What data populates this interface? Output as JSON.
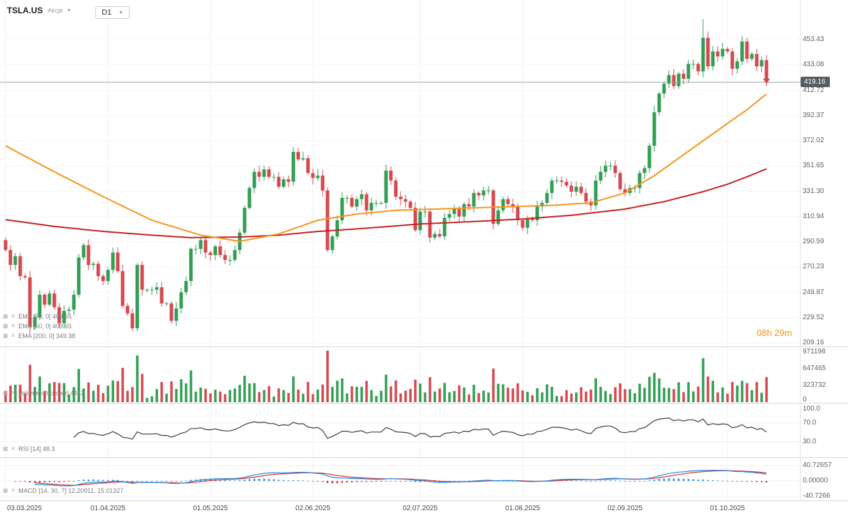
{
  "toolbar": {
    "symbol": "TSLA.US",
    "instrument_type": "Akcje",
    "timeframe": "D1"
  },
  "price_axis": {
    "labels": [
      "453.43",
      "433.08",
      "412.72",
      "392.37",
      "372.02",
      "351.65",
      "331.30",
      "310.94",
      "290.59",
      "270.23",
      "249.87",
      "229.52",
      "209.16"
    ],
    "current_price": "419.16"
  },
  "main_chart": {
    "ema_rows": [
      "EMA [50, 0] 409.65",
      "EMA [50, 0] 409.65",
      "EMA [200, 0] 349.38"
    ],
    "timer": "08h 29m"
  },
  "volume_panel": {
    "legend": "Volumen [tickowy] 4412",
    "axis": [
      "971198",
      "647465",
      "323732",
      "0"
    ]
  },
  "rsi_panel": {
    "legend": "RSI [14] 48.3",
    "axis": [
      "100.0",
      "70.0",
      "30.0"
    ]
  },
  "macd_panel": {
    "legend": "MACD [14, 30, 7] 12.20911, 15.01327",
    "axis": [
      "40.72657",
      "0.00000",
      "-40.7266"
    ]
  },
  "date_axis": [
    "03.03.2025",
    "01.04.2025",
    "01.05.2025",
    "02.06.2025",
    "02.07.2025",
    "01.08.2025",
    "02.09.2025",
    "01.10.2025"
  ],
  "chart_data": {
    "type": "candlestick",
    "symbol": "TSLA.US",
    "timeframe": "D1",
    "indicators": [
      "EMA(50)",
      "EMA(200)",
      "Volume",
      "RSI(14)",
      "MACD(14,30,7)"
    ],
    "price_range": [
      209.16,
      453.43
    ],
    "current_price": 419.16,
    "first_open": 292,
    "peak_high": 470,
    "closes": [
      284,
      272,
      279,
      263,
      262,
      222,
      230,
      248,
      240,
      249,
      238,
      225,
      235,
      236,
      248,
      278,
      288,
      272,
      273,
      263,
      259,
      268,
      282,
      267,
      239,
      233,
      221,
      272,
      252,
      252,
      252,
      254,
      241,
      241,
      227,
      237,
      250,
      259,
      285,
      285,
      292,
      282,
      280,
      287,
      280,
      276,
      276,
      284,
      298,
      318,
      334,
      347,
      343,
      349,
      343,
      343,
      335,
      341,
      339,
      363,
      357,
      358,
      346,
      342,
      344,
      332,
      284,
      295,
      308,
      326,
      326,
      319,
      325,
      329,
      316,
      322,
      322,
      322,
      348,
      340,
      327,
      325,
      323,
      318,
      300,
      315,
      315,
      294,
      297,
      295,
      310,
      313,
      317,
      311,
      321,
      319,
      330,
      328,
      332,
      332,
      305,
      316,
      325,
      321,
      319,
      308,
      302,
      309,
      308,
      319,
      322,
      330,
      340,
      340,
      339,
      336,
      331,
      335,
      330,
      323,
      320,
      340,
      347,
      352,
      352,
      346,
      333,
      330,
      334,
      334,
      346,
      350,
      368,
      395,
      410,
      418,
      425,
      416,
      426,
      422,
      434,
      434,
      428,
      455,
      432,
      444,
      440,
      446,
      444,
      430,
      436,
      452,
      438,
      442,
      432,
      437,
      419.16
    ],
    "date_tick_indices": [
      0,
      21,
      42,
      63,
      85,
      106,
      127,
      148
    ],
    "ema50_points": [
      [
        0,
        368
      ],
      [
        10,
        347
      ],
      [
        20,
        327
      ],
      [
        30,
        308
      ],
      [
        40,
        296
      ],
      [
        48,
        291
      ],
      [
        56,
        297
      ],
      [
        64,
        308
      ],
      [
        72,
        313
      ],
      [
        80,
        316
      ],
      [
        88,
        317
      ],
      [
        96,
        318
      ],
      [
        104,
        319
      ],
      [
        112,
        320
      ],
      [
        120,
        322
      ],
      [
        127,
        330
      ],
      [
        133,
        344
      ],
      [
        138,
        358
      ],
      [
        143,
        372
      ],
      [
        148,
        386
      ],
      [
        152,
        397
      ],
      [
        156,
        409.65
      ]
    ],
    "ema200_points": [
      [
        0,
        308.5
      ],
      [
        10,
        303
      ],
      [
        20,
        299
      ],
      [
        30,
        296
      ],
      [
        38,
        294
      ],
      [
        48,
        294.5
      ],
      [
        56,
        296
      ],
      [
        64,
        299
      ],
      [
        72,
        301
      ],
      [
        85,
        305
      ],
      [
        96,
        307
      ],
      [
        106,
        309
      ],
      [
        116,
        312
      ],
      [
        127,
        317
      ],
      [
        135,
        323
      ],
      [
        143,
        331
      ],
      [
        148,
        337
      ],
      [
        152,
        343
      ],
      [
        156,
        349.38
      ]
    ],
    "volume_axis_max": 971198,
    "volume_overrides": {
      "66": 971198,
      "143": 830000
    },
    "rsi_axis": [
      100,
      70,
      30
    ],
    "macd_axis_max": 40.72657,
    "colors": {
      "up": "#319e53",
      "down": "#d5484f",
      "ema_fast": "#f7941e",
      "ema_slow": "#c62222",
      "rsi_line": "#3c3c3c",
      "macd_line": "#1e88e5",
      "signal_line": "#d03030",
      "price_line": "#9aa0a6",
      "badge_bg": "#575c63",
      "timer": "#f5930f"
    }
  }
}
